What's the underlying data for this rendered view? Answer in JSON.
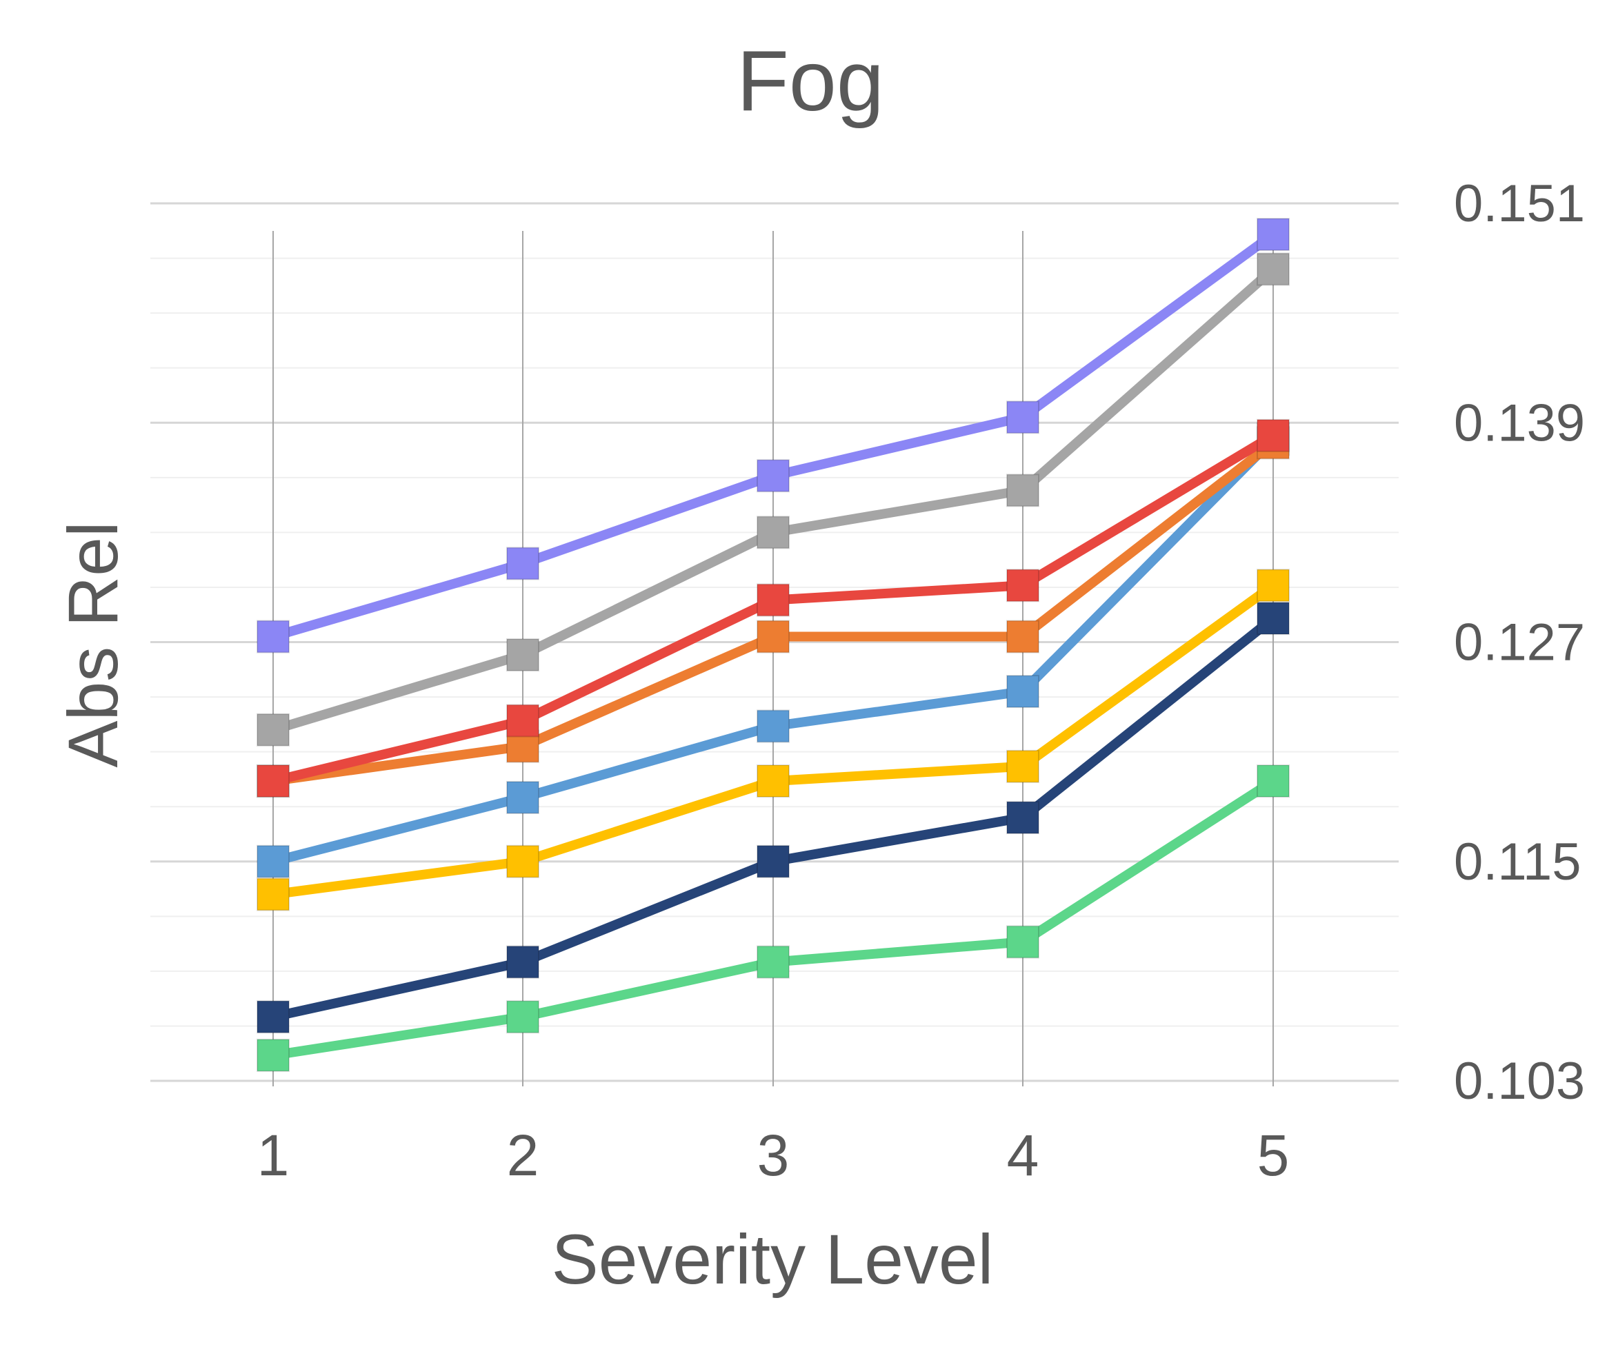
{
  "chart_data": {
    "type": "line",
    "title": "Fog",
    "xlabel": "Severity Level",
    "ylabel": "Abs Rel",
    "x": [
      1,
      2,
      3,
      4,
      5
    ],
    "ylim": [
      0.103,
      0.151
    ],
    "yticks": [
      "0.103",
      "0.115",
      "0.127",
      "0.139",
      "0.151"
    ],
    "y_axis_side": "right",
    "grid": true,
    "legend": "none",
    "marker": "square",
    "series": [
      {
        "color": "#8B86F5",
        "values": [
          0.1273,
          0.1313,
          0.1361,
          0.1393,
          0.1493
        ]
      },
      {
        "color": "#A5A5A5",
        "values": [
          0.1222,
          0.1263,
          0.133,
          0.1353,
          0.1474
        ]
      },
      {
        "color": "#E8473F",
        "values": [
          0.1194,
          0.1227,
          0.1293,
          0.1301,
          0.1383
        ]
      },
      {
        "color": "#ED7D31",
        "values": [
          0.1194,
          0.1213,
          0.1273,
          0.1273,
          0.1379
        ]
      },
      {
        "color": "#5B9BD5",
        "values": [
          0.115,
          0.1185,
          0.1224,
          0.1243,
          0.1381
        ]
      },
      {
        "color": "#FFC000",
        "values": [
          0.1132,
          0.115,
          0.1194,
          0.1202,
          0.1301
        ]
      },
      {
        "color": "#264478",
        "values": [
          0.1065,
          0.1095,
          0.115,
          0.1174,
          0.1283
        ]
      },
      {
        "color": "#5CD68A",
        "values": [
          0.1044,
          0.1065,
          0.1095,
          0.1106,
          0.1194
        ]
      }
    ]
  }
}
